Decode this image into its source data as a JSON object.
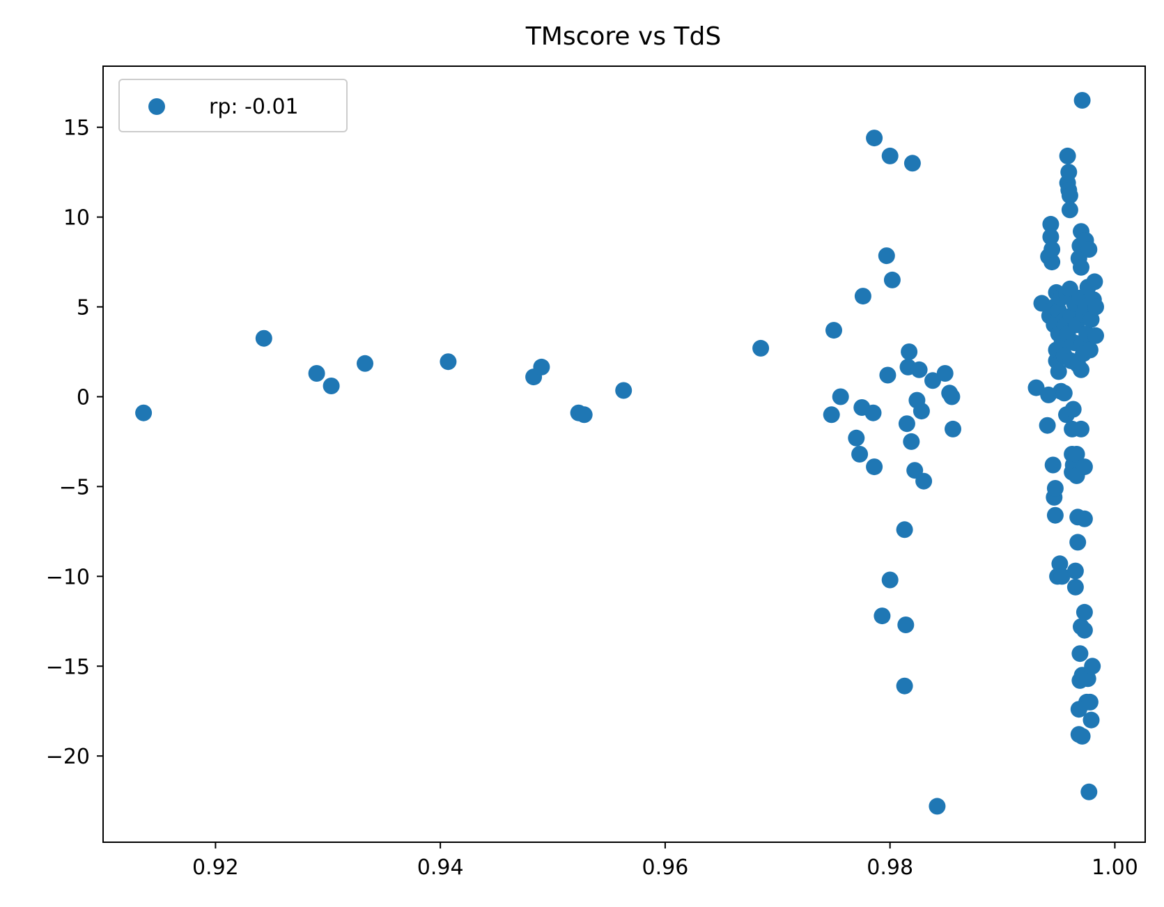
{
  "chart_data": {
    "type": "scatter",
    "title": "TMscore vs TdS",
    "xlabel": "",
    "ylabel": "",
    "xlim": [
      0.91,
      1.0027
    ],
    "ylim": [
      -24.8,
      18.4
    ],
    "x_ticks": [
      0.92,
      0.94,
      0.96,
      0.98,
      1.0
    ],
    "x_tick_labels": [
      "0.92",
      "0.94",
      "0.96",
      "0.98",
      "1.00"
    ],
    "y_ticks": [
      15,
      10,
      5,
      0,
      -5,
      -10,
      -15,
      -20
    ],
    "y_tick_labels": [
      "15",
      "10",
      "5",
      "0",
      "−5",
      "−10",
      "−15",
      "−20"
    ],
    "grid": false,
    "legend_position": "upper-left",
    "color": "#1f77b4",
    "series": [
      {
        "name": "rp: -0.01",
        "points": [
          [
            0.9136,
            -0.9
          ],
          [
            0.9243,
            3.25
          ],
          [
            0.929,
            1.3
          ],
          [
            0.9303,
            0.6
          ],
          [
            0.9333,
            1.85
          ],
          [
            0.9407,
            1.95
          ],
          [
            0.9483,
            1.1
          ],
          [
            0.949,
            1.65
          ],
          [
            0.9523,
            -0.9
          ],
          [
            0.9528,
            -1.0
          ],
          [
            0.9563,
            0.35
          ],
          [
            0.9685,
            2.7
          ],
          [
            0.9748,
            -1.0
          ],
          [
            0.975,
            3.7
          ],
          [
            0.9756,
            0.0
          ],
          [
            0.977,
            -2.3
          ],
          [
            0.9773,
            -3.2
          ],
          [
            0.9775,
            -0.6
          ],
          [
            0.9776,
            5.6
          ],
          [
            0.9785,
            -0.9
          ],
          [
            0.9786,
            -3.9
          ],
          [
            0.9786,
            14.4
          ],
          [
            0.9793,
            -12.2
          ],
          [
            0.9797,
            7.85
          ],
          [
            0.9798,
            1.2
          ],
          [
            0.98,
            13.4
          ],
          [
            0.98,
            -10.2
          ],
          [
            0.9802,
            6.5
          ],
          [
            0.9813,
            -7.4
          ],
          [
            0.9813,
            -16.1
          ],
          [
            0.9814,
            -12.7
          ],
          [
            0.9815,
            -1.5
          ],
          [
            0.9816,
            1.65
          ],
          [
            0.9817,
            2.5
          ],
          [
            0.9819,
            -2.5
          ],
          [
            0.982,
            13.0
          ],
          [
            0.9822,
            -4.1
          ],
          [
            0.9824,
            -0.2
          ],
          [
            0.9826,
            1.5
          ],
          [
            0.9828,
            -0.8
          ],
          [
            0.983,
            -4.7
          ],
          [
            0.9838,
            0.9
          ],
          [
            0.9842,
            -22.8
          ],
          [
            0.9849,
            1.3
          ],
          [
            0.9853,
            0.2
          ],
          [
            0.9855,
            0.0
          ],
          [
            0.9856,
            -1.8
          ],
          [
            0.993,
            0.5
          ],
          [
            0.9935,
            5.2
          ],
          [
            0.994,
            -1.6
          ],
          [
            0.9941,
            0.1
          ],
          [
            0.9941,
            7.8
          ],
          [
            0.9942,
            4.5
          ],
          [
            0.9943,
            9.6
          ],
          [
            0.9943,
            8.9
          ],
          [
            0.9944,
            7.5
          ],
          [
            0.9944,
            8.2
          ],
          [
            0.9945,
            -3.8
          ],
          [
            0.9946,
            5.0
          ],
          [
            0.9946,
            4.0
          ],
          [
            0.9946,
            -5.6
          ],
          [
            0.9947,
            -6.6
          ],
          [
            0.9947,
            -5.1
          ],
          [
            0.9948,
            2.0
          ],
          [
            0.9948,
            2.6
          ],
          [
            0.9948,
            5.8
          ],
          [
            0.9949,
            -10.0
          ],
          [
            0.995,
            1.4
          ],
          [
            0.995,
            3.5
          ],
          [
            0.995,
            4.8
          ],
          [
            0.9951,
            -9.3
          ],
          [
            0.9952,
            0.3
          ],
          [
            0.9952,
            5.5
          ],
          [
            0.9953,
            -10.0
          ],
          [
            0.9953,
            3.0
          ],
          [
            0.9954,
            4.2
          ],
          [
            0.9955,
            0.2
          ],
          [
            0.9955,
            2.3
          ],
          [
            0.9956,
            4.0
          ],
          [
            0.9957,
            5.7
          ],
          [
            0.9957,
            -1.0
          ],
          [
            0.9958,
            3.5
          ],
          [
            0.9958,
            13.4
          ],
          [
            0.9958,
            11.9
          ],
          [
            0.9959,
            11.5
          ],
          [
            0.9959,
            12.5
          ],
          [
            0.996,
            11.2
          ],
          [
            0.996,
            10.4
          ],
          [
            0.996,
            6.0
          ],
          [
            0.9961,
            2.0
          ],
          [
            0.9961,
            4.5
          ],
          [
            0.9962,
            -1.8
          ],
          [
            0.9962,
            -3.2
          ],
          [
            0.9962,
            -4.2
          ],
          [
            0.9963,
            -0.7
          ],
          [
            0.9963,
            -3.8
          ],
          [
            0.9964,
            3.0
          ],
          [
            0.9964,
            5.2
          ],
          [
            0.9965,
            -9.7
          ],
          [
            0.9965,
            -10.6
          ],
          [
            0.9966,
            4.0
          ],
          [
            0.9966,
            -3.2
          ],
          [
            0.9966,
            -4.4
          ],
          [
            0.9967,
            -6.7
          ],
          [
            0.9967,
            -8.1
          ],
          [
            0.9967,
            1.8
          ],
          [
            0.9968,
            7.7
          ],
          [
            0.9968,
            -18.8
          ],
          [
            0.9968,
            -17.4
          ],
          [
            0.9969,
            5.5
          ],
          [
            0.9969,
            8.4
          ],
          [
            0.9969,
            -15.8
          ],
          [
            0.9969,
            -14.3
          ],
          [
            0.997,
            -1.8
          ],
          [
            0.997,
            -12.8
          ],
          [
            0.997,
            9.2
          ],
          [
            0.997,
            7.2
          ],
          [
            0.997,
            1.5
          ],
          [
            0.9971,
            3.0
          ],
          [
            0.9971,
            -15.5
          ],
          [
            0.9971,
            -18.9
          ],
          [
            0.9971,
            16.5
          ],
          [
            0.9972,
            4.6
          ],
          [
            0.9972,
            2.4
          ],
          [
            0.9973,
            -3.9
          ],
          [
            0.9973,
            -6.8
          ],
          [
            0.9973,
            -12.0
          ],
          [
            0.9973,
            -13.0
          ],
          [
            0.9974,
            8.7
          ],
          [
            0.9974,
            5.0
          ],
          [
            0.9975,
            3.5
          ],
          [
            0.9975,
            -17.0
          ],
          [
            0.9976,
            6.1
          ],
          [
            0.9976,
            -15.7
          ],
          [
            0.9977,
            -22.0
          ],
          [
            0.9977,
            8.2
          ],
          [
            0.9978,
            2.6
          ],
          [
            0.9978,
            -17.0
          ],
          [
            0.9979,
            4.3
          ],
          [
            0.9979,
            -18.0
          ],
          [
            0.998,
            -15.0
          ],
          [
            0.9981,
            5.4
          ],
          [
            0.9982,
            6.4
          ],
          [
            0.9983,
            3.4
          ],
          [
            0.9983,
            5.0
          ]
        ]
      }
    ]
  }
}
